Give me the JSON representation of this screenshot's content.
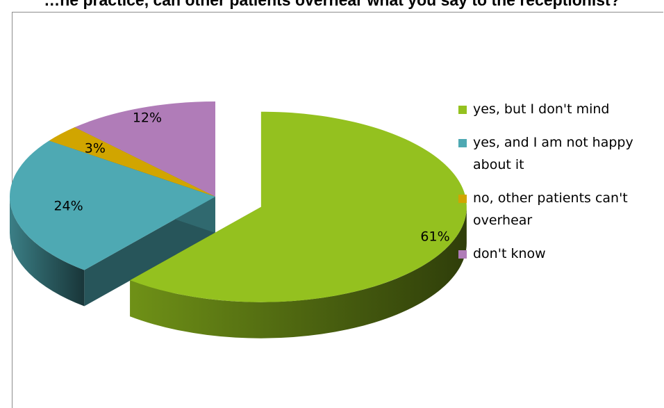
{
  "chart_data": {
    "type": "pie",
    "title": "…he practice, can other patients overhear what you say to the receptionist?",
    "three_d": true,
    "exploded": true,
    "categories": [
      "yes, but I don't mind",
      "yes, and I am not happy about it",
      "no, other patients can't overhear",
      "don't know"
    ],
    "values": [
      61,
      24,
      3,
      12
    ],
    "data_labels": [
      "61%",
      "24%",
      "3%",
      "12%"
    ],
    "colors": [
      "#94c11f",
      "#4ea9b3",
      "#d1a500",
      "#b07cb8"
    ],
    "legend": {
      "placement": "right",
      "entries": [
        "yes, but I don't mind",
        "yes, and I am not happy about it",
        "no, other patients can't overhear",
        "don't know"
      ]
    }
  }
}
